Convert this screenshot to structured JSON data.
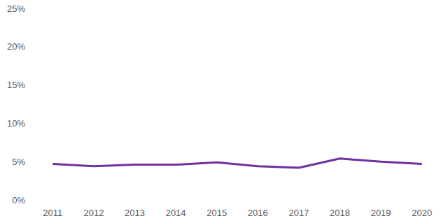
{
  "chart_data": {
    "type": "line",
    "categories": [
      "2011",
      "2012",
      "2013",
      "2014",
      "2015",
      "2016",
      "2017",
      "2018",
      "2019",
      "2020"
    ],
    "values": [
      4.7,
      4.4,
      4.6,
      4.6,
      4.9,
      4.4,
      4.2,
      5.4,
      5.0,
      4.7
    ],
    "color": "#7030a0",
    "ylim": [
      0,
      25
    ],
    "yticks": [
      {
        "value": 0,
        "label": "0%"
      },
      {
        "value": 5,
        "label": "5%"
      },
      {
        "value": 10,
        "label": "10%"
      },
      {
        "value": 15,
        "label": "15%"
      },
      {
        "value": 20,
        "label": "20%"
      },
      {
        "value": 25,
        "label": "25%"
      }
    ],
    "grid": false
  }
}
